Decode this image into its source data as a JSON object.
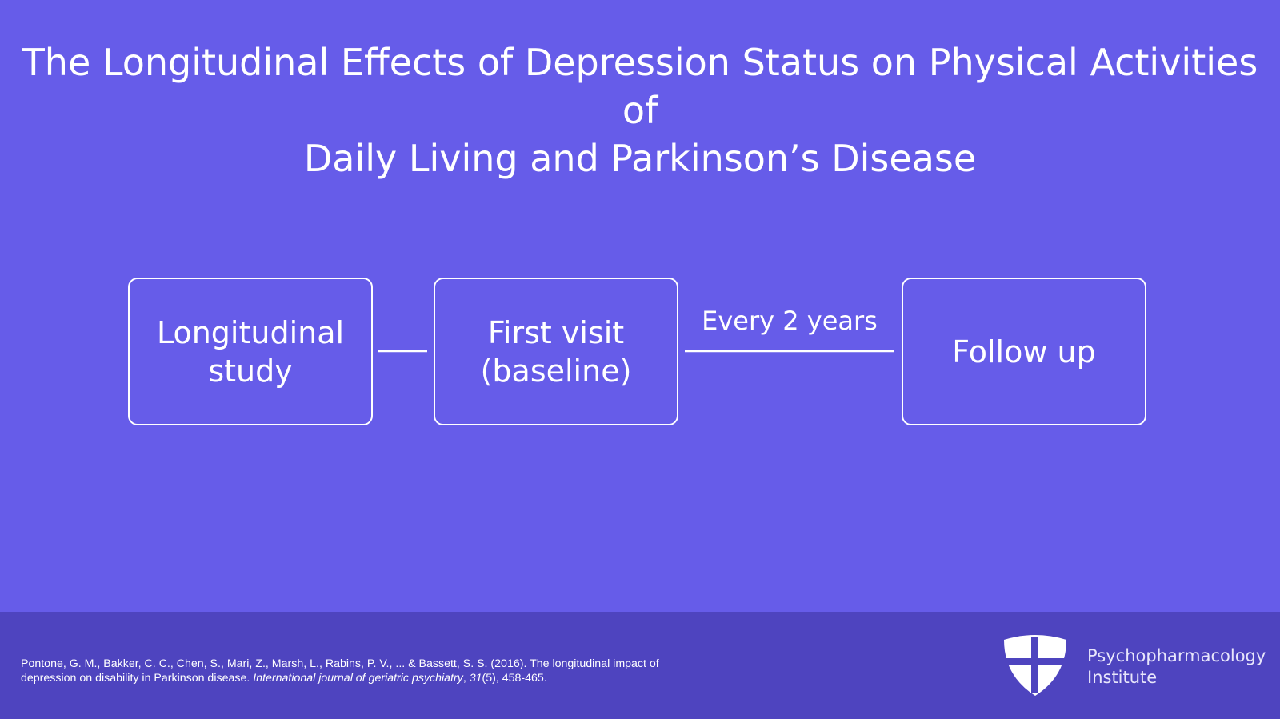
{
  "title": [
    "The Longitudinal Effects of Depression Status on Physical Activities of",
    "Daily Living and Parkinson’s Disease"
  ],
  "nodes": [
    {
      "label": "Longitudinal study"
    },
    {
      "label": "First visit (baseline)"
    },
    {
      "label": "Follow up"
    }
  ],
  "edges": [
    {
      "label": "Every 2 years"
    }
  ],
  "citation": [
    "Pontone, G. M., Bakker, C. C., Chen, S., Mari, Z., Marsh, L., Rabins, P. V., ... & Bassett, S. S. (2016). The longitudinal impact of depression on disability in Parkinson disease. ",
    "International journal of geriatric psychiatry",
    ", ",
    "31",
    "(5), 458-465."
  ],
  "logo": [
    "Psychopharmacology",
    "Institute"
  ]
}
